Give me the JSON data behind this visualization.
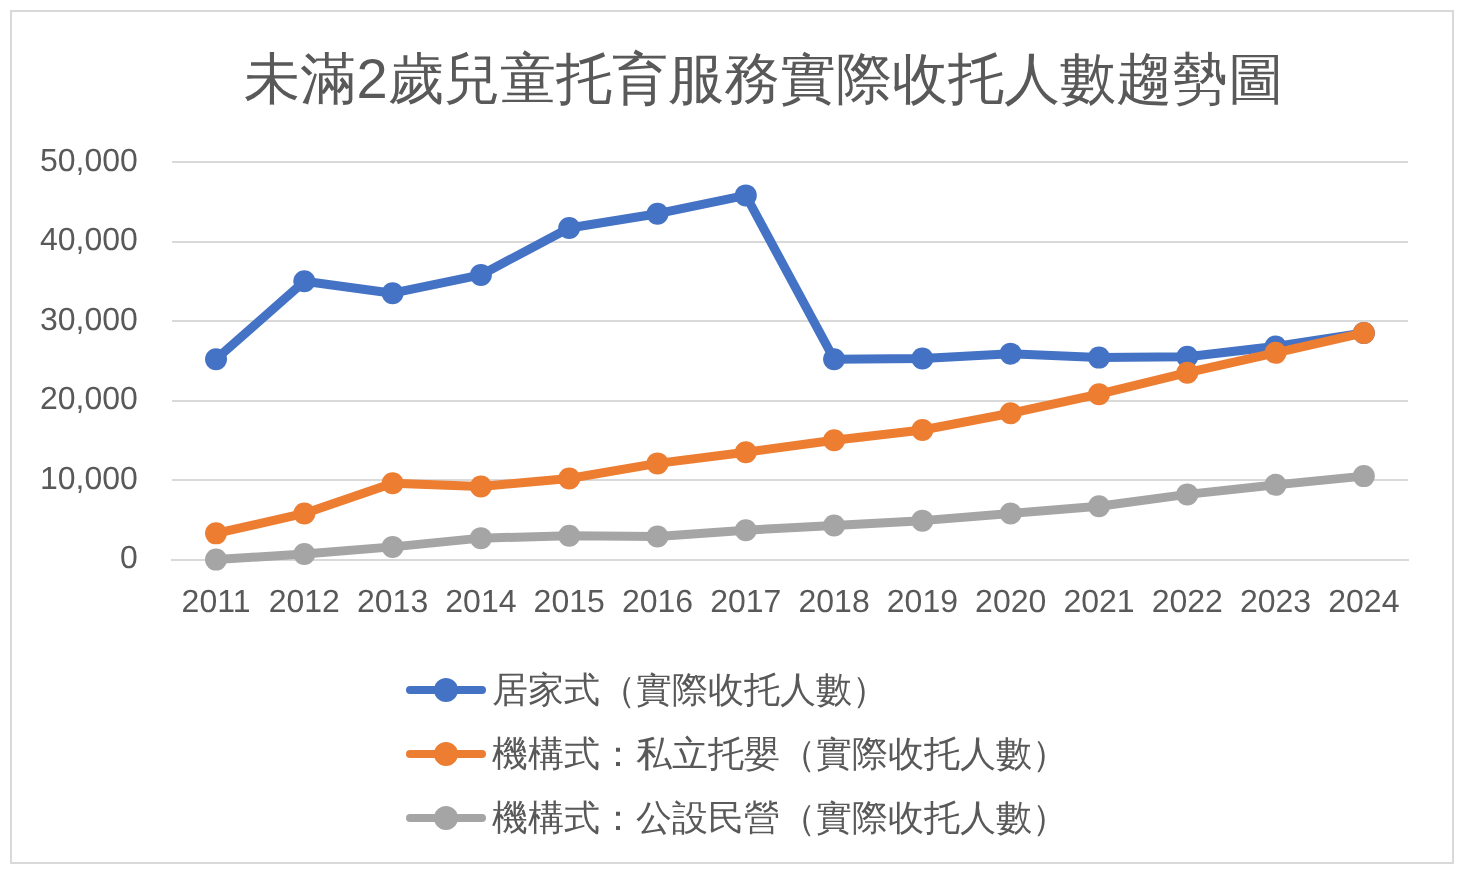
{
  "chart_data": {
    "type": "line",
    "title": "未滿2歲兒童托育服務實際收托人數趨勢圖",
    "categories": [
      "2011",
      "2012",
      "2013",
      "2014",
      "2015",
      "2016",
      "2017",
      "2018",
      "2019",
      "2020",
      "2021",
      "2022",
      "2023",
      "2024"
    ],
    "series": [
      {
        "name": "居家式（實際收托人數）",
        "color": "#4472c4",
        "values": [
          25200,
          35000,
          33500,
          35800,
          41700,
          43500,
          45800,
          25200,
          25300,
          25900,
          25400,
          25500,
          26800,
          28500
        ]
      },
      {
        "name": "機構式：私立托嬰（實際收托人數）",
        "color": "#ed7d31",
        "values": [
          3300,
          5800,
          9600,
          9200,
          10200,
          12100,
          13500,
          15000,
          16300,
          18400,
          20800,
          23500,
          26000,
          28500
        ]
      },
      {
        "name": "機構式：公設民營（實際收托人數）",
        "color": "#a5a5a5",
        "values": [
          0,
          700,
          1600,
          2700,
          3000,
          2900,
          3700,
          4300,
          4900,
          5800,
          6700,
          8200,
          9400,
          10500
        ]
      }
    ],
    "ylim": [
      0,
      50000
    ],
    "yticks": [
      0,
      {
        "value": 10000,
        "label": "10,000"
      },
      {
        "value": 20000,
        "label": "20,000"
      },
      {
        "value": 30000,
        "label": "30,000"
      },
      {
        "value": 40000,
        "label": "40,000"
      },
      {
        "value": 50000,
        "label": "50,000"
      }
    ],
    "grid": "y",
    "legend": "bottom",
    "marker": "circle"
  }
}
